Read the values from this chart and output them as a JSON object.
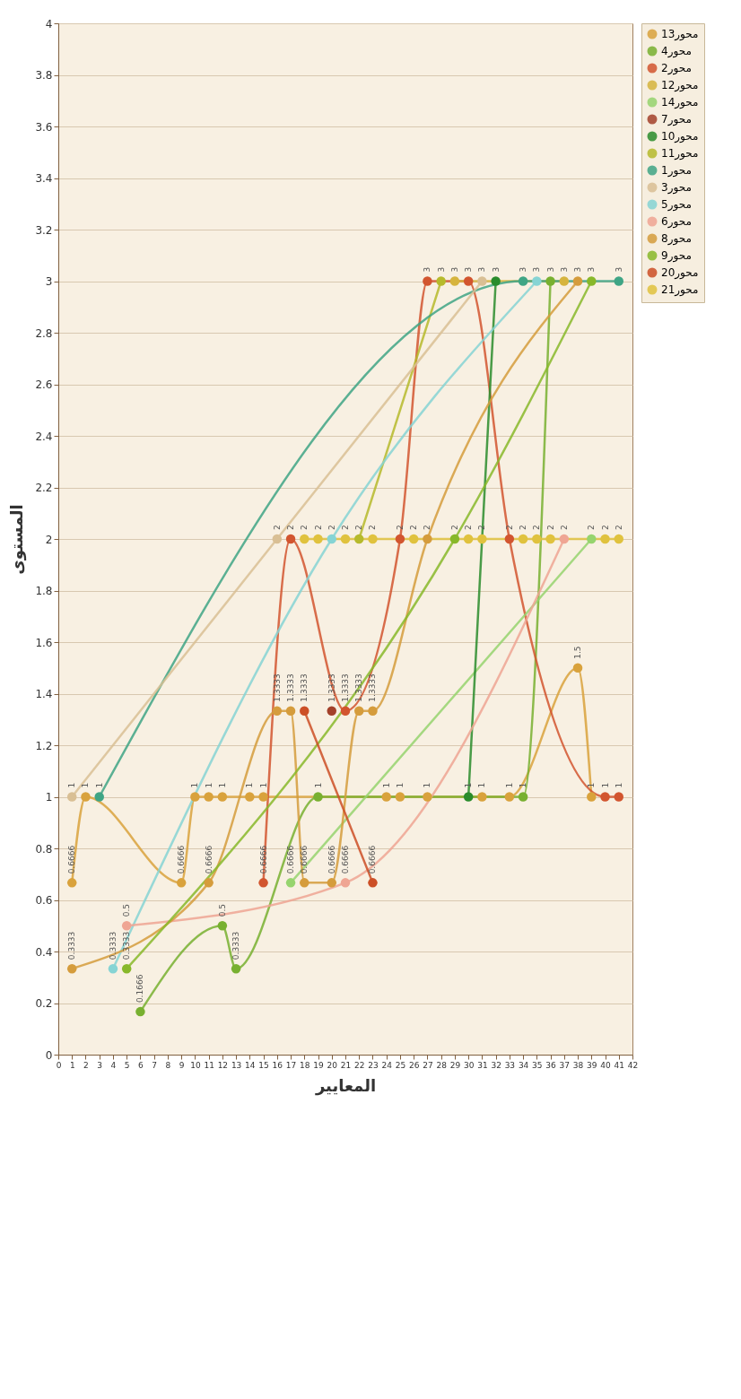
{
  "chart_data": {
    "type": "line",
    "xlabel": "المعايير",
    "ylabel": "المستوى",
    "xlim": [
      0,
      42
    ],
    "xticks": [
      0,
      1,
      2,
      3,
      4,
      5,
      6,
      7,
      8,
      9,
      10,
      11,
      12,
      13,
      14,
      15,
      16,
      17,
      18,
      19,
      20,
      21,
      22,
      23,
      24,
      25,
      26,
      27,
      28,
      29,
      30,
      31,
      32,
      33,
      34,
      35,
      36,
      37,
      38,
      39,
      40,
      41,
      42
    ],
    "ylim": [
      0,
      4
    ],
    "yticks": [
      0,
      0.2,
      0.4,
      0.6,
      0.8,
      1,
      1.2,
      1.4,
      1.6,
      1.8,
      2,
      2.2,
      2.4,
      2.6,
      2.8,
      3,
      3.2,
      3.4,
      3.6,
      3.8,
      4
    ],
    "grid": "y",
    "legend": "right",
    "marker": "circle",
    "line_style": "solid",
    "data_labels": true,
    "series": [
      {
        "name": "محور13",
        "color": "#d9a23c",
        "x": [
          1,
          2,
          9,
          10,
          11,
          12,
          14,
          15,
          24,
          25,
          27,
          31,
          33,
          38,
          39
        ],
        "values": [
          0.6666,
          1,
          0.6666,
          1,
          1,
          1,
          1,
          1,
          1,
          1,
          1,
          1,
          1,
          1.5,
          1
        ]
      },
      {
        "name": "محور4",
        "color": "#78b030",
        "x": [
          6,
          12,
          13,
          19,
          34,
          36
        ],
        "values": [
          0.1666,
          0.5,
          0.3333,
          1,
          1,
          3
        ]
      },
      {
        "name": "محور2",
        "color": "#d2552f",
        "x": [
          15,
          17,
          21,
          25,
          27,
          30,
          33,
          40,
          41
        ],
        "values": [
          0.6666,
          2,
          1.3333,
          2,
          3,
          3,
          2,
          1,
          1
        ]
      },
      {
        "name": "محور12",
        "color": "#d6b43e",
        "x": [
          29,
          37
        ],
        "values": [
          3,
          3
        ]
      },
      {
        "name": "محور14",
        "color": "#96d46e",
        "x": [
          17,
          39
        ],
        "values": [
          0.6666,
          2
        ]
      },
      {
        "name": "محور7",
        "color": "#a3412a",
        "x": [
          20
        ],
        "values": [
          1.3333
        ]
      },
      {
        "name": "محور10",
        "color": "#2a8c2c",
        "x": [
          30,
          32
        ],
        "values": [
          1,
          3
        ]
      },
      {
        "name": "محور11",
        "color": "#b6ba2c",
        "x": [
          22,
          28
        ],
        "values": [
          2,
          3
        ]
      },
      {
        "name": "محور1",
        "color": "#3fa585",
        "x": [
          3,
          34,
          41
        ],
        "values": [
          1,
          3,
          3
        ]
      },
      {
        "name": "محور3",
        "color": "#d9bf94",
        "x": [
          1,
          16,
          31
        ],
        "values": [
          1,
          2,
          3
        ]
      },
      {
        "name": "محور5",
        "color": "#86d4d4",
        "x": [
          4,
          20,
          35
        ],
        "values": [
          0.3333,
          2,
          3
        ]
      },
      {
        "name": "محور6",
        "color": "#efa593",
        "x": [
          5,
          21,
          37
        ],
        "values": [
          0.5,
          0.6666,
          2
        ]
      },
      {
        "name": "محور8",
        "color": "#d59c3c",
        "x": [
          1,
          11,
          16,
          17,
          18,
          20,
          22,
          23,
          27,
          38
        ],
        "values": [
          0.3333,
          0.6666,
          1.3333,
          1.3333,
          0.6666,
          0.6666,
          1.3333,
          1.3333,
          2,
          3
        ]
      },
      {
        "name": "محور9",
        "color": "#88b82a",
        "x": [
          5,
          29,
          39
        ],
        "values": [
          0.3333,
          2,
          3
        ]
      },
      {
        "name": "محور20",
        "color": "#cc4f26",
        "x": [
          18,
          23
        ],
        "values": [
          1.3333,
          0.6666
        ]
      },
      {
        "name": "محور21",
        "color": "#e0c23e",
        "x": [
          18,
          19,
          21,
          23,
          26,
          30,
          31,
          34,
          35,
          36,
          40,
          41
        ],
        "values": [
          2,
          2,
          2,
          2,
          2,
          2,
          2,
          2,
          2,
          2,
          2,
          2
        ]
      }
    ]
  }
}
